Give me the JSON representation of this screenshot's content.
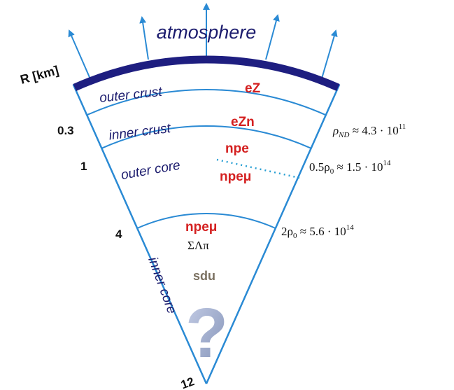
{
  "title": "atmosphere",
  "axis_label": "R [km]",
  "radii": [
    "0.3",
    "1",
    "4",
    "12"
  ],
  "layers": [
    {
      "name": "outer crust",
      "composition": [
        "eZ"
      ]
    },
    {
      "name": "inner crust",
      "composition": [
        "eZn"
      ]
    },
    {
      "name": "outer core",
      "composition": [
        "npe",
        "npeμ"
      ]
    },
    {
      "name": "inner core",
      "composition": [
        "npeμ",
        "ΣΛπ",
        "sdu",
        "?"
      ]
    }
  ],
  "densities": [
    {
      "symbol": "ρ",
      "sub": "ND",
      "rest": " ≈ 4.3 · 10",
      "sup": "11"
    },
    {
      "symbol": "0.5ρ",
      "sub": "0",
      "rest": " ≈ 1.5 · 10",
      "sup": "14"
    },
    {
      "symbol": "2ρ",
      "sub": "0",
      "rest": " ≈ 5.6 · 10",
      "sup": "14"
    }
  ]
}
